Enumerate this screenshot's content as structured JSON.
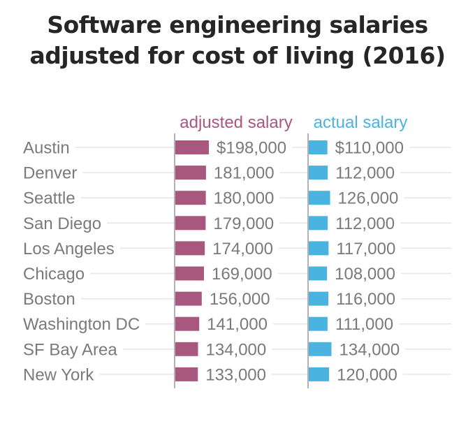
{
  "title_line1": "Software engineering salaries",
  "title_line2": "adjusted for cost of living  (2016)",
  "colors": {
    "adjusted": "#a8577e",
    "actual": "#4ab3e0",
    "label_text": "#7a7a7a",
    "grid": "#e6e6e6",
    "axis": "#9a9a9a"
  },
  "chart_data": {
    "type": "bar",
    "title": "Software engineering salaries adjusted for cost of living  (2016)",
    "categories": [
      "Austin",
      "Denver",
      "Seattle",
      "San Diego",
      "Los Angeles",
      "Chicago",
      "Boston",
      "Washington DC",
      "SF Bay Area",
      "New York"
    ],
    "series": [
      {
        "name": "adjusted salary",
        "values": [
          198000,
          181000,
          180000,
          179000,
          174000,
          169000,
          156000,
          141000,
          134000,
          133000
        ],
        "labels": [
          "$198,000",
          "181,000",
          "180,000",
          "179,000",
          "174,000",
          "169,000",
          "156,000",
          "141,000",
          "134,000",
          "133,000"
        ]
      },
      {
        "name": "actual salary",
        "values": [
          110000,
          112000,
          126000,
          112000,
          117000,
          108000,
          116000,
          111000,
          134000,
          120000
        ],
        "labels": [
          "$110,000",
          "112,000",
          "126,000",
          "112,000",
          "117,000",
          "108,000",
          "116,000",
          "111,000",
          "134,000",
          "120,000"
        ]
      }
    ],
    "orientation": "horizontal",
    "grid": true
  }
}
